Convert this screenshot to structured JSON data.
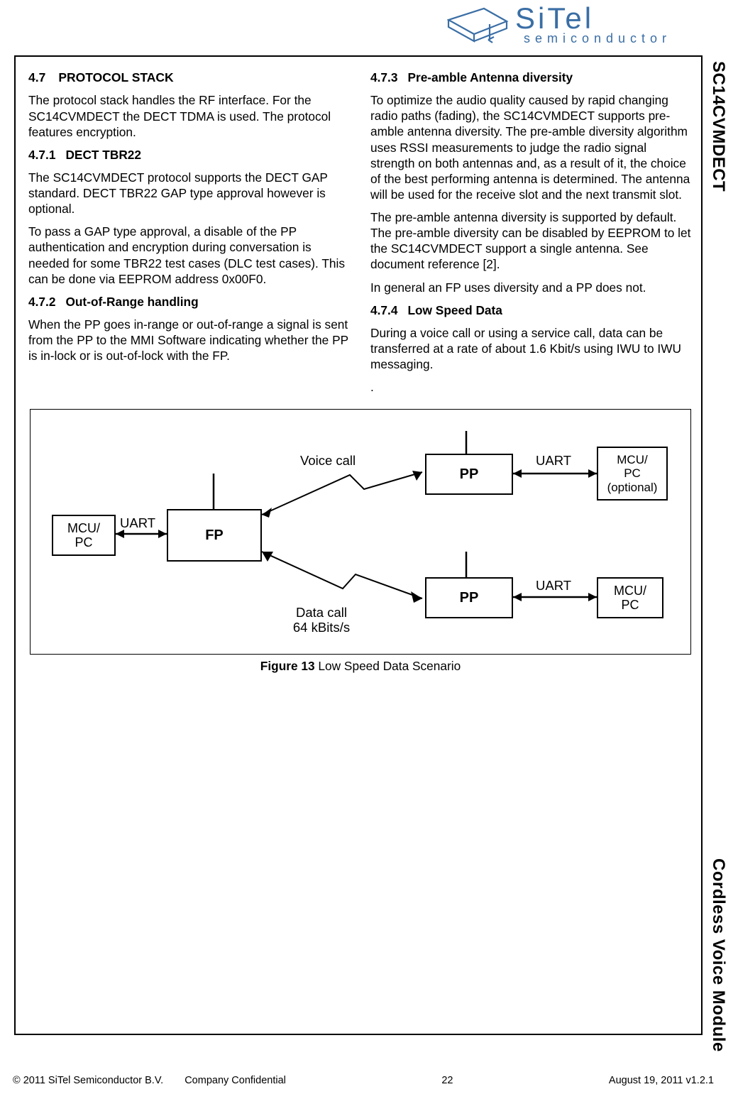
{
  "logo": {
    "brand_top": "SiTel",
    "brand_sub": "semiconductor",
    "colors": {
      "stroke": "#3a6ea5",
      "text": "#3a6ea5"
    }
  },
  "side": {
    "top": "SC14CVMDECT",
    "bottom": "Cordless Voice Module"
  },
  "left_col": {
    "sec47_num": "4.7",
    "sec47_title": "PROTOCOL STACK",
    "sec47_body": "The protocol stack handles the RF interface. For the SC14CVMDECT the DECT TDMA is used. The protocol features encryption.",
    "sec471_num": "4.7.1",
    "sec471_title": "DECT TBR22",
    "sec471_p1": "The SC14CVMDECT protocol supports the DECT GAP standard. DECT TBR22 GAP type approval however is optional.",
    "sec471_p2": "To pass a GAP type approval, a disable of the PP authentication and encryption during conversation is needed for some TBR22 test cases (DLC test cases). This can be done via EEPROM address 0x00F0.",
    "sec472_num": "4.7.2",
    "sec472_title": "Out-of-Range handling",
    "sec472_p1": "When the PP goes in-range or out-of-range a signal is sent from the PP to the MMI Software indicating whether the PP is in-lock or is out-of-lock with the FP."
  },
  "right_col": {
    "sec473_num": "4.7.3",
    "sec473_title": "Pre-amble Antenna diversity",
    "sec473_p1": "To optimize the audio quality caused by rapid changing radio paths (fading), the SC14CVMDECT supports pre-amble antenna diversity. The pre-amble diversity algorithm uses RSSI measurements to judge the radio signal strength on both antennas and, as a result of it, the choice of the best performing antenna is determined. The antenna will be used for the receive slot and the next transmit slot.",
    "sec473_p2": "The pre-amble antenna diversity is supported by default. The pre-amble diversity can be disabled by EEPROM to let the SC14CVMDECT support a single antenna. See document reference [2].",
    "sec473_p3": "In general an FP uses diversity and a PP does not.",
    "sec474_num": "4.7.4",
    "sec474_title": "Low Speed Data",
    "sec474_p1": "During a voice call or using a service call, data can be transferred at a rate of about 1.6 Kbit/s using IWU to IWU messaging.",
    "sec474_dot": "."
  },
  "figure": {
    "caption_bold": "Figure 13",
    "caption_rest": "  Low Speed Data Scenario",
    "boxes": {
      "mcu_pc_left": "MCU/\nPC",
      "fp": "FP",
      "pp_top": "PP",
      "pp_bot": "PP",
      "mcu_pc_top": "MCU/\nPC\n(optional)",
      "mcu_pc_bot": "MCU/\nPC"
    },
    "labels": {
      "uart_left": "UART",
      "uart_top": "UART",
      "uart_bot": "UART",
      "voice_call": "Voice call",
      "data_call": "Data call\n64 kBits/s"
    },
    "style": {
      "stroke": "#000000",
      "stroke_width": 2.5,
      "font_size": 18
    }
  },
  "footer": {
    "copyright": "© 2011 SiTel Semiconductor B.V.",
    "confidential": "Company Confidential",
    "page_num": "22",
    "date": "August 19, 2011 v1.2.1"
  }
}
